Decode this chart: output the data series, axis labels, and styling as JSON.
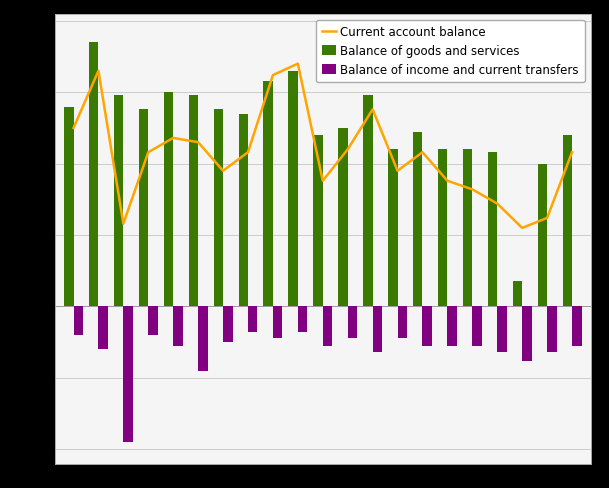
{
  "goods_services": [
    140,
    185,
    148,
    138,
    150,
    148,
    138,
    135,
    158,
    165,
    120,
    125,
    148,
    110,
    122,
    110,
    110,
    108,
    18,
    100,
    120
  ],
  "income_transfers": [
    -20,
    -30,
    -95,
    -20,
    -28,
    -45,
    -25,
    -18,
    -22,
    -18,
    -28,
    -22,
    -32,
    -22,
    -28,
    -28,
    -28,
    -32,
    -38,
    -32,
    -28
  ],
  "current_account": [
    125,
    165,
    58,
    108,
    118,
    115,
    95,
    108,
    162,
    170,
    88,
    110,
    138,
    95,
    108,
    88,
    82,
    72,
    55,
    62,
    108
  ],
  "legend_labels": [
    "Balance of goods and services",
    "Balance of income and current transfers",
    "Current account balance"
  ],
  "bar_color_green": "#3a7a00",
  "bar_color_purple": "#800080",
  "line_color": "#ffa500",
  "plot_bg_color": "#f5f5f5",
  "fig_bg_color": "#000000",
  "ylim_min": -110,
  "ylim_max": 205,
  "yticks": [
    -100,
    -50,
    0,
    50,
    100,
    150,
    200
  ],
  "grid_color": "#cccccc",
  "n_bars": 21,
  "bar_width": 0.38
}
